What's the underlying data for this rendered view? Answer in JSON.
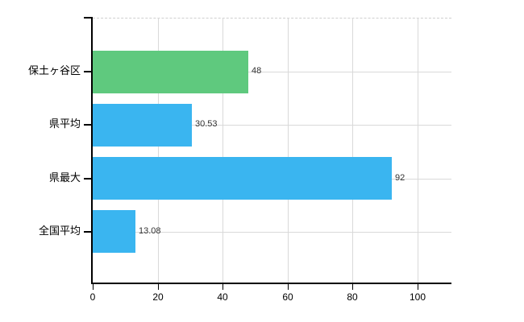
{
  "chart_data": {
    "type": "bar",
    "orientation": "horizontal",
    "title": "",
    "xlabel": "",
    "ylabel": "",
    "categories": [
      "保土ヶ谷区",
      "県平均",
      "県最大",
      "全国平均"
    ],
    "values": [
      48,
      30.53,
      92,
      13.08
    ],
    "value_labels": [
      "48",
      "30.53",
      "92",
      "13.08"
    ],
    "bar_colors": [
      "#5fc97e",
      "#3ab5f0",
      "#3ab5f0",
      "#3ab5f0"
    ],
    "x_ticks": [
      "0",
      "20",
      "40",
      "60",
      "80",
      "100"
    ],
    "x_tick_values": [
      0,
      20,
      40,
      60,
      80,
      100
    ],
    "xlim": [
      0,
      110.4
    ],
    "grid": true,
    "legend": false
  },
  "colors": {
    "axis": "#000000",
    "grid": "#d9d9d9",
    "grid_top_dashed": "#cfcfcf",
    "bar_green": "#5fc97e",
    "bar_blue": "#3ab5f0",
    "text": "#000000",
    "value_text": "#333333",
    "background": "#ffffff"
  }
}
